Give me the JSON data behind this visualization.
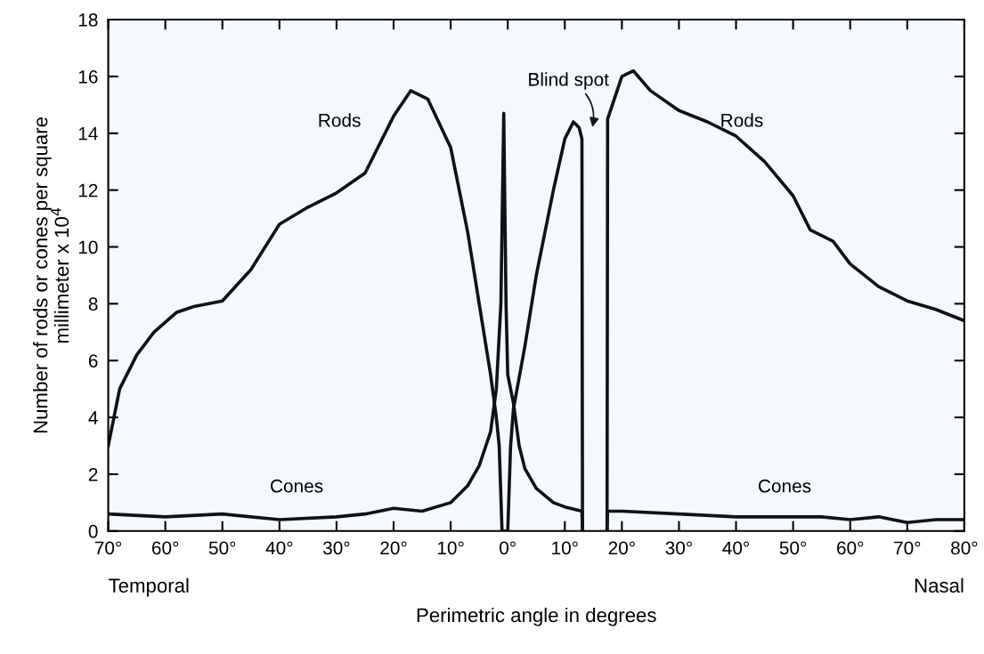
{
  "chart_data": {
    "type": "line",
    "xlabel": "Perimetric angle in degrees",
    "ylabel": "Number of rods or cones per square\nmillimeter x 10$^{4}$",
    "xlim": [
      -70,
      80
    ],
    "xticks": [
      {
        "value": -70,
        "label": "70°"
      },
      {
        "value": -60,
        "label": "60°"
      },
      {
        "value": -50,
        "label": "50°"
      },
      {
        "value": -40,
        "label": "40°"
      },
      {
        "value": -30,
        "label": "30°"
      },
      {
        "value": -20,
        "label": "20°"
      },
      {
        "value": -10,
        "label": "10°"
      },
      {
        "value": 0,
        "label": "0°"
      },
      {
        "value": 10,
        "label": "10°"
      },
      {
        "value": 20,
        "label": "20°"
      },
      {
        "value": 30,
        "label": "30°"
      },
      {
        "value": 40,
        "label": "40°"
      },
      {
        "value": 50,
        "label": "50°"
      },
      {
        "value": 60,
        "label": "60°"
      },
      {
        "value": 70,
        "label": "70°"
      },
      {
        "value": 80,
        "label": "80°"
      }
    ],
    "ylim": [
      0,
      18
    ],
    "yticks": [
      0,
      2,
      4,
      6,
      8,
      10,
      12,
      14,
      16,
      18
    ],
    "grid": false,
    "legend": false,
    "marker": "none",
    "line_style": "solid",
    "series": [
      {
        "color": "#111111",
        "x": [
          -70,
          -68,
          -65,
          -62,
          -58,
          -55,
          -50,
          -45,
          -40,
          -35,
          -30,
          -25,
          -20,
          -17,
          -14,
          -10,
          -7,
          -5,
          -3,
          -2,
          -1.5,
          -1,
          0,
          0.5,
          1,
          3,
          5,
          8,
          10,
          11.5,
          12.5,
          13,
          13.1,
          15,
          17.4,
          17.5,
          20,
          22,
          25,
          30,
          35,
          40,
          45,
          50,
          53,
          57,
          60,
          65,
          70,
          75,
          80
        ],
        "values": [
          3.0,
          5.0,
          6.2,
          7.0,
          7.7,
          7.9,
          8.1,
          9.2,
          10.8,
          11.4,
          11.9,
          12.6,
          14.6,
          15.5,
          15.2,
          13.5,
          10.5,
          8.0,
          5.5,
          4.0,
          3.0,
          0,
          0,
          3.0,
          4.3,
          6.5,
          9.0,
          12.0,
          13.8,
          14.4,
          14.2,
          13.8,
          0,
          null,
          0,
          14.5,
          16.0,
          16.2,
          15.5,
          14.8,
          14.4,
          13.9,
          13.0,
          11.8,
          10.6,
          10.2,
          9.4,
          8.6,
          8.1,
          7.8,
          7.4
        ]
      },
      {
        "color": "#111111",
        "x": [
          -70,
          -60,
          -50,
          -40,
          -30,
          -25,
          -20,
          -15,
          -10,
          -7,
          -5,
          -3,
          -2,
          -1.2,
          -0.7,
          -0.3,
          0,
          1,
          2,
          3,
          5,
          8,
          10,
          13,
          13.1,
          15,
          17.4,
          17.5,
          20,
          30,
          40,
          50,
          55,
          60,
          65,
          70,
          75,
          80
        ],
        "values": [
          0.6,
          0.5,
          0.6,
          0.4,
          0.5,
          0.6,
          0.8,
          0.7,
          1.0,
          1.6,
          2.3,
          3.5,
          5.0,
          8.0,
          14.7,
          8.0,
          5.5,
          4.5,
          3.0,
          2.2,
          1.5,
          1.0,
          0.85,
          0.7,
          0,
          null,
          0,
          0.7,
          0.7,
          0.6,
          0.5,
          0.5,
          0.5,
          0.4,
          0.5,
          0.3,
          0.4,
          0.4
        ]
      }
    ],
    "annotations": [
      "Rods",
      "Rods",
      "Cones",
      "Cones",
      "Blind spot",
      "Temporal",
      "Nasal"
    ]
  }
}
